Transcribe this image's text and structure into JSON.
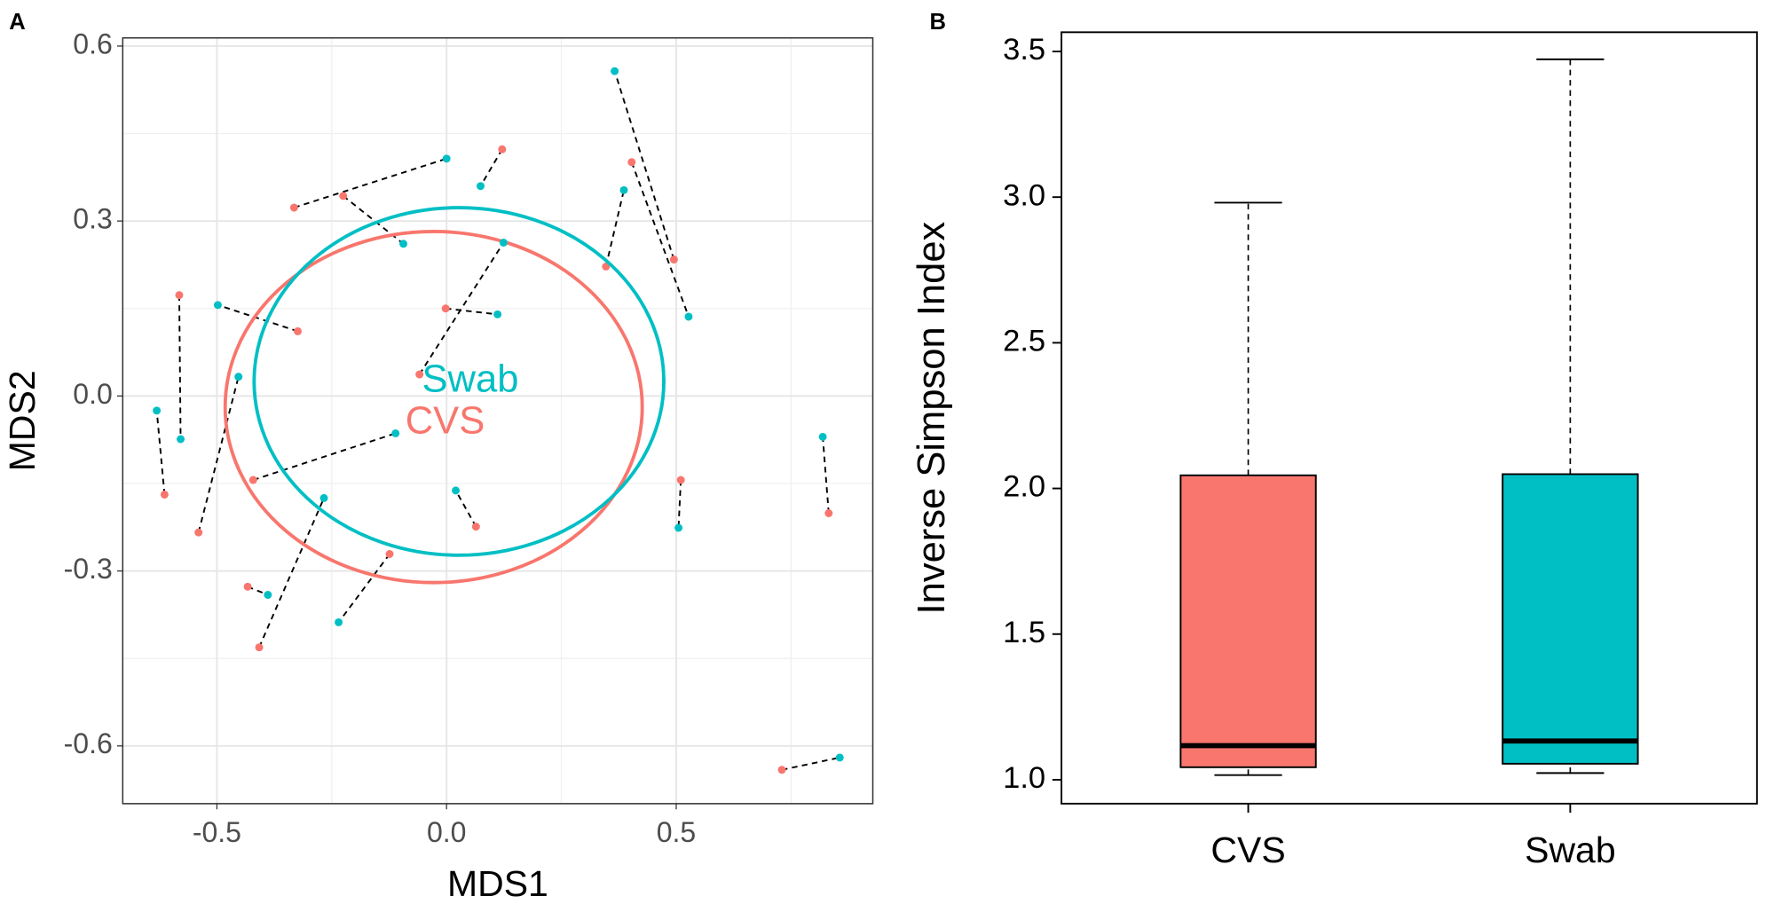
{
  "chart_data": [
    {
      "type": "scatter",
      "panel_label": "A",
      "x_label": "MDS1",
      "y_label": "MDS2",
      "xlim": [
        -0.705,
        0.928
      ],
      "ylim": [
        -0.699,
        0.614
      ],
      "xticks": [
        -0.5,
        {
          "value": 0,
          "label": "0.0"
        },
        0.5
      ],
      "yticks": [
        -0.6,
        -0.3,
        {
          "value": 0,
          "label": "0.0"
        },
        0.3,
        0.6
      ],
      "grid": true,
      "paired": true,
      "series": [
        {
          "name": "CVS",
          "color": "#F8766D",
          "x": [
            -0.332,
            -0.225,
            0.121,
            0.495,
            0.403,
            0.347,
            -0.582,
            -0.324,
            -0.002,
            -0.059,
            -0.614,
            -0.54,
            -0.421,
            0.064,
            0.51,
            0.832,
            -0.433,
            -0.408,
            -0.124,
            0.73
          ],
          "y": [
            0.323,
            0.343,
            0.423,
            0.234,
            0.401,
            0.222,
            0.173,
            0.111,
            0.15,
            0.037,
            -0.169,
            -0.234,
            -0.144,
            -0.224,
            -0.144,
            -0.201,
            -0.327,
            -0.431,
            -0.271,
            -0.641
          ],
          "ellipse": {
            "cx": -0.028,
            "cy": -0.019,
            "rx": 0.454,
            "ry": 0.301
          }
        },
        {
          "name": "Swab",
          "color": "#00BFC4",
          "x": [
            0.0,
            -0.094,
            0.074,
            0.366,
            0.527,
            0.386,
            -0.579,
            -0.498,
            0.111,
            0.124,
            -0.631,
            -0.453,
            -0.111,
            0.02,
            0.505,
            0.819,
            -0.389,
            -0.267,
            -0.235,
            0.856
          ],
          "y": [
            0.407,
            0.261,
            0.36,
            0.557,
            0.136,
            0.353,
            -0.074,
            0.156,
            0.14,
            0.263,
            -0.025,
            0.033,
            -0.064,
            -0.162,
            -0.226,
            -0.07,
            -0.341,
            -0.175,
            -0.388,
            -0.62
          ],
          "ellipse": {
            "cx": 0.027,
            "cy": 0.025,
            "rx": 0.446,
            "ry": 0.298
          }
        }
      ]
    },
    {
      "type": "box",
      "panel_label": "B",
      "y_label": "Inverse Simpson Index",
      "categories": [
        "CVS",
        "Swab"
      ],
      "colors": [
        "#F8766D",
        "#00BFC4"
      ],
      "ylim": [
        0.918,
        3.566
      ],
      "yticks": [
        {
          "value": 1,
          "label": "1.0"
        },
        1.5,
        {
          "value": 2,
          "label": "2.0"
        },
        2.5,
        {
          "value": 3,
          "label": "3.0"
        },
        3.5
      ],
      "boxes": [
        {
          "min": 1.016,
          "q1": 1.043,
          "median": 1.117,
          "q3": 2.045,
          "max": 2.981
        },
        {
          "min": 1.023,
          "q1": 1.055,
          "median": 1.133,
          "q3": 2.049,
          "max": 3.473
        }
      ]
    }
  ]
}
